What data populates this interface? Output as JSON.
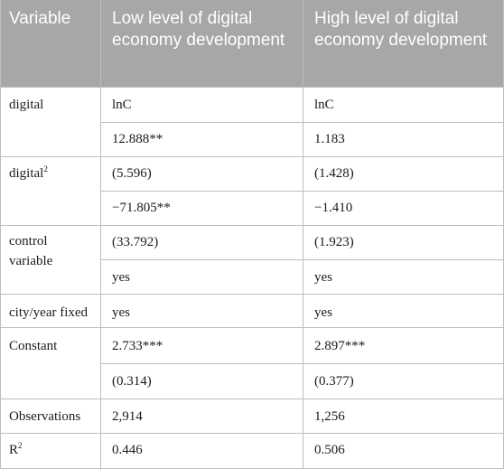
{
  "table": {
    "headers": [
      "Variable",
      "Low level of digital economy development",
      "High level of digital economy development"
    ],
    "rows": [
      {
        "variable": "digital",
        "low": "lnC",
        "high": "lnC"
      },
      {
        "variable": "",
        "low": "12.888**",
        "high": "1.183"
      },
      {
        "variable": "digital",
        "variable_sup": "2",
        "low": "(5.596)",
        "high": "(1.428)"
      },
      {
        "variable": "",
        "low": "−71.805**",
        "high": "−1.410"
      },
      {
        "variable": "control variable",
        "low": "(33.792)",
        "high": "(1.923)"
      },
      {
        "variable": "",
        "low": "yes",
        "high": "yes"
      },
      {
        "variable": "city/year fixed",
        "low": "yes",
        "high": "yes"
      },
      {
        "variable": "Constant",
        "low": "2.733***",
        "high": "2.897***"
      },
      {
        "variable": "",
        "low": "(0.314)",
        "high": "(0.377)"
      },
      {
        "variable": "Observations",
        "low": "2,914",
        "high": "1,256"
      },
      {
        "variable": "R",
        "variable_sup": "2",
        "low": "0.446",
        "high": "0.506"
      }
    ]
  }
}
